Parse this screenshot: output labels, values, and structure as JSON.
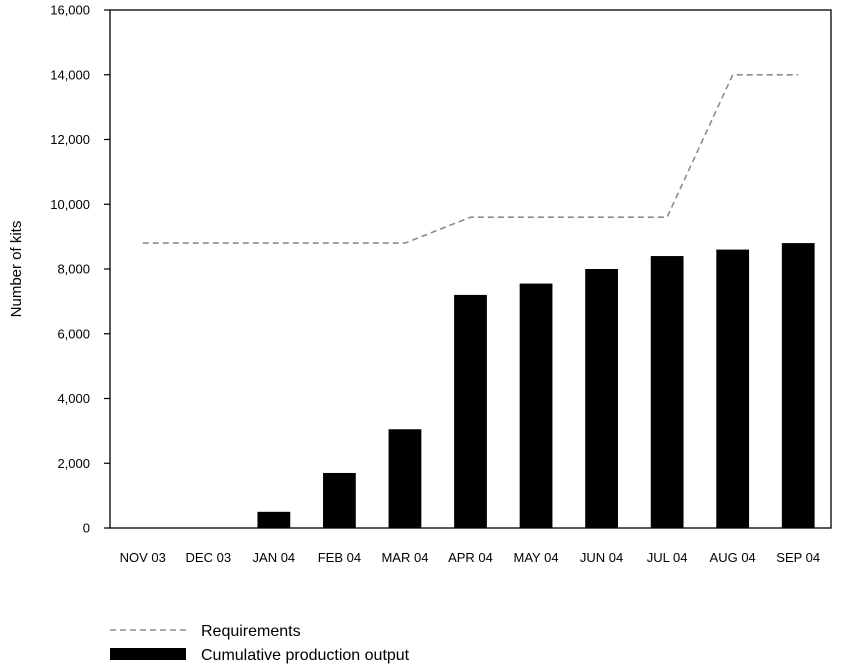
{
  "chart_data": {
    "type": "bar",
    "categories": [
      "NOV 03",
      "DEC 03",
      "JAN 04",
      "FEB 04",
      "MAR 04",
      "APR 04",
      "MAY 04",
      "JUN 04",
      "JUL 04",
      "AUG 04",
      "SEP 04"
    ],
    "series": [
      {
        "name": "Cumulative production output",
        "type": "bar",
        "color": "#000000",
        "values": [
          0,
          0,
          500,
          1700,
          3050,
          7200,
          7550,
          8000,
          8400,
          8600,
          8800
        ]
      },
      {
        "name": "Requirements",
        "type": "line",
        "style": "dashed",
        "color": "#8c8c8c",
        "values": [
          8800,
          8800,
          8800,
          8800,
          8800,
          9600,
          9600,
          9600,
          9600,
          14000,
          14000
        ]
      }
    ],
    "ylabel": "Number of kits",
    "xlabel": "",
    "title": "",
    "ylim": [
      0,
      16000
    ],
    "yticks": [
      0,
      2000,
      4000,
      6000,
      8000,
      10000,
      12000,
      14000,
      16000
    ],
    "ytick_labels": [
      "0",
      "2,000",
      "4,000",
      "6,000",
      "8,000",
      "10,000",
      "12,000",
      "14,000",
      "16,000"
    ],
    "grid": false,
    "legend": {
      "placement": "bottom-left",
      "items": [
        {
          "label": "Requirements",
          "symbol": "dashed-line",
          "color": "#8c8c8c"
        },
        {
          "label": "Cumulative production output",
          "symbol": "solid-bar",
          "color": "#000000"
        }
      ]
    }
  }
}
